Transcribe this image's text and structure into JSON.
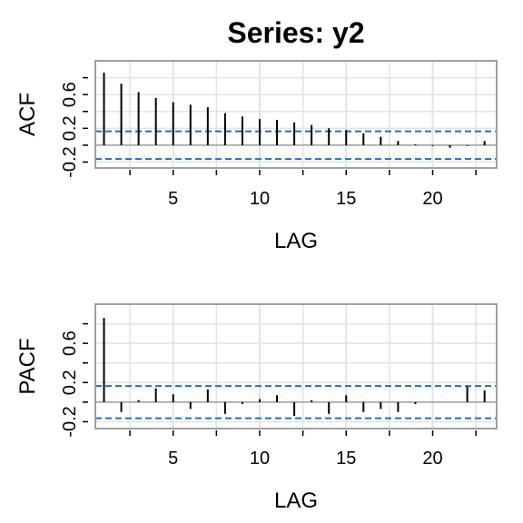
{
  "title": "Series:  y2",
  "chart_data": [
    {
      "type": "bar",
      "ylabel": "ACF",
      "xlabel": "LAG",
      "xlim": [
        0.5,
        23.7
      ],
      "ylim": [
        -0.27,
        1.0
      ],
      "x_ticks": [
        5,
        10,
        15,
        20
      ],
      "x_ticks_labels": [
        "5",
        "10",
        "15",
        "20"
      ],
      "y_ticks": [
        -0.2,
        0.2,
        0.6
      ],
      "y_ticks_labels": [
        "-0.2",
        "0.2",
        "0.6"
      ],
      "confidence_bound": 0.164,
      "grid": true,
      "lags": [
        1,
        2,
        3,
        4,
        5,
        6,
        7,
        8,
        9,
        10,
        11,
        12,
        13,
        14,
        15,
        16,
        17,
        18,
        19,
        20,
        21,
        22,
        23
      ],
      "values": [
        0.86,
        0.73,
        0.63,
        0.56,
        0.51,
        0.48,
        0.45,
        0.38,
        0.34,
        0.31,
        0.3,
        0.27,
        0.24,
        0.2,
        0.18,
        0.14,
        0.1,
        0.05,
        0.01,
        -0.01,
        -0.03,
        -0.01,
        0.05
      ]
    },
    {
      "type": "bar",
      "ylabel": "PACF",
      "xlabel": "LAG",
      "xlim": [
        0.5,
        23.7
      ],
      "ylim": [
        -0.27,
        1.0
      ],
      "x_ticks": [
        5,
        10,
        15,
        20
      ],
      "x_ticks_labels": [
        "5",
        "10",
        "15",
        "20"
      ],
      "y_ticks": [
        -0.2,
        0.2,
        0.6
      ],
      "y_ticks_labels": [
        "-0.2",
        "0.2",
        "0.6"
      ],
      "confidence_bound": 0.164,
      "grid": true,
      "lags": [
        1,
        2,
        3,
        4,
        5,
        6,
        7,
        8,
        9,
        10,
        11,
        12,
        13,
        14,
        15,
        16,
        17,
        18,
        19,
        20,
        21,
        22,
        23
      ],
      "values": [
        0.86,
        -0.1,
        0.02,
        0.14,
        0.08,
        -0.07,
        0.13,
        -0.12,
        -0.02,
        0.03,
        0.07,
        -0.14,
        0.02,
        -0.12,
        0.07,
        -0.1,
        -0.07,
        -0.1,
        -0.02,
        0.0,
        0.0,
        0.16,
        0.12
      ]
    }
  ]
}
